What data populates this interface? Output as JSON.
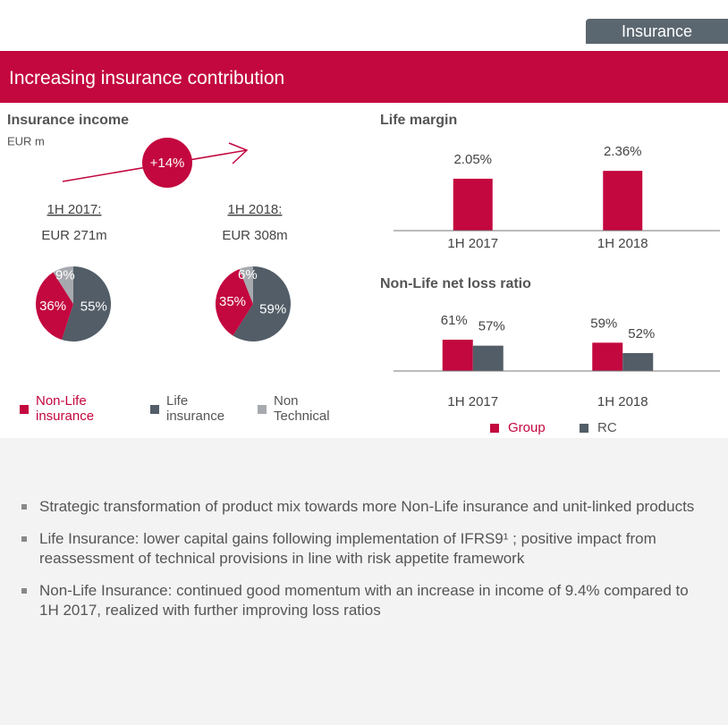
{
  "tag": "Insurance",
  "title": "Increasing insurance contribution",
  "income_panel": {
    "title": "Insurance income",
    "unit": "EUR m",
    "growth": "+14%"
  },
  "chart_data": [
    {
      "type": "pie",
      "title": "1H 2017:",
      "subtitle": "EUR 271m",
      "categories": [
        "Non-Life insurance",
        "Life insurance",
        "Non Technical"
      ],
      "values": [
        36,
        55,
        9
      ],
      "value_labels": [
        "36%",
        "55%",
        "9%"
      ],
      "colors": [
        "#c3073f",
        "#525d67",
        "#a6a9ae"
      ]
    },
    {
      "type": "pie",
      "title": "1H 2018:",
      "subtitle": "EUR 308m",
      "categories": [
        "Non-Life insurance",
        "Life insurance",
        "Non Technical"
      ],
      "values": [
        35,
        59,
        6
      ],
      "value_labels": [
        "35%",
        "59%",
        "6%"
      ],
      "colors": [
        "#c3073f",
        "#525d67",
        "#a6a9ae"
      ]
    },
    {
      "type": "bar",
      "title": "Life margin",
      "categories": [
        "1H 2017",
        "1H 2018"
      ],
      "values": [
        2.05,
        2.36
      ],
      "value_labels": [
        "2.05%",
        "2.36%"
      ],
      "color": "#c3073f",
      "ylim": [
        0,
        3
      ]
    },
    {
      "type": "bar",
      "title": "Non-Life net loss ratio",
      "categories": [
        "1H 2017",
        "1H 2018"
      ],
      "series": [
        {
          "name": "Group",
          "color": "#c3073f",
          "values": [
            61,
            59
          ],
          "value_labels": [
            "61%",
            "59%"
          ]
        },
        {
          "name": "RC",
          "color": "#525d67",
          "values": [
            57,
            52
          ],
          "value_labels": [
            "57%",
            "52%"
          ]
        }
      ],
      "ylim": [
        40,
        70
      ],
      "legend": "bottom"
    }
  ],
  "bullets": [
    "Strategic transformation of product mix towards more Non-Life insurance and unit-linked products",
    "Life Insurance: lower capital gains following implementation of IFRS9¹ ; positive impact from reassessment of technical provisions in line with risk appetite framework",
    "Non-Life Insurance: continued good momentum with an increase in income of 9.4% compared to 1H 2017, realized with further improving loss ratios"
  ]
}
